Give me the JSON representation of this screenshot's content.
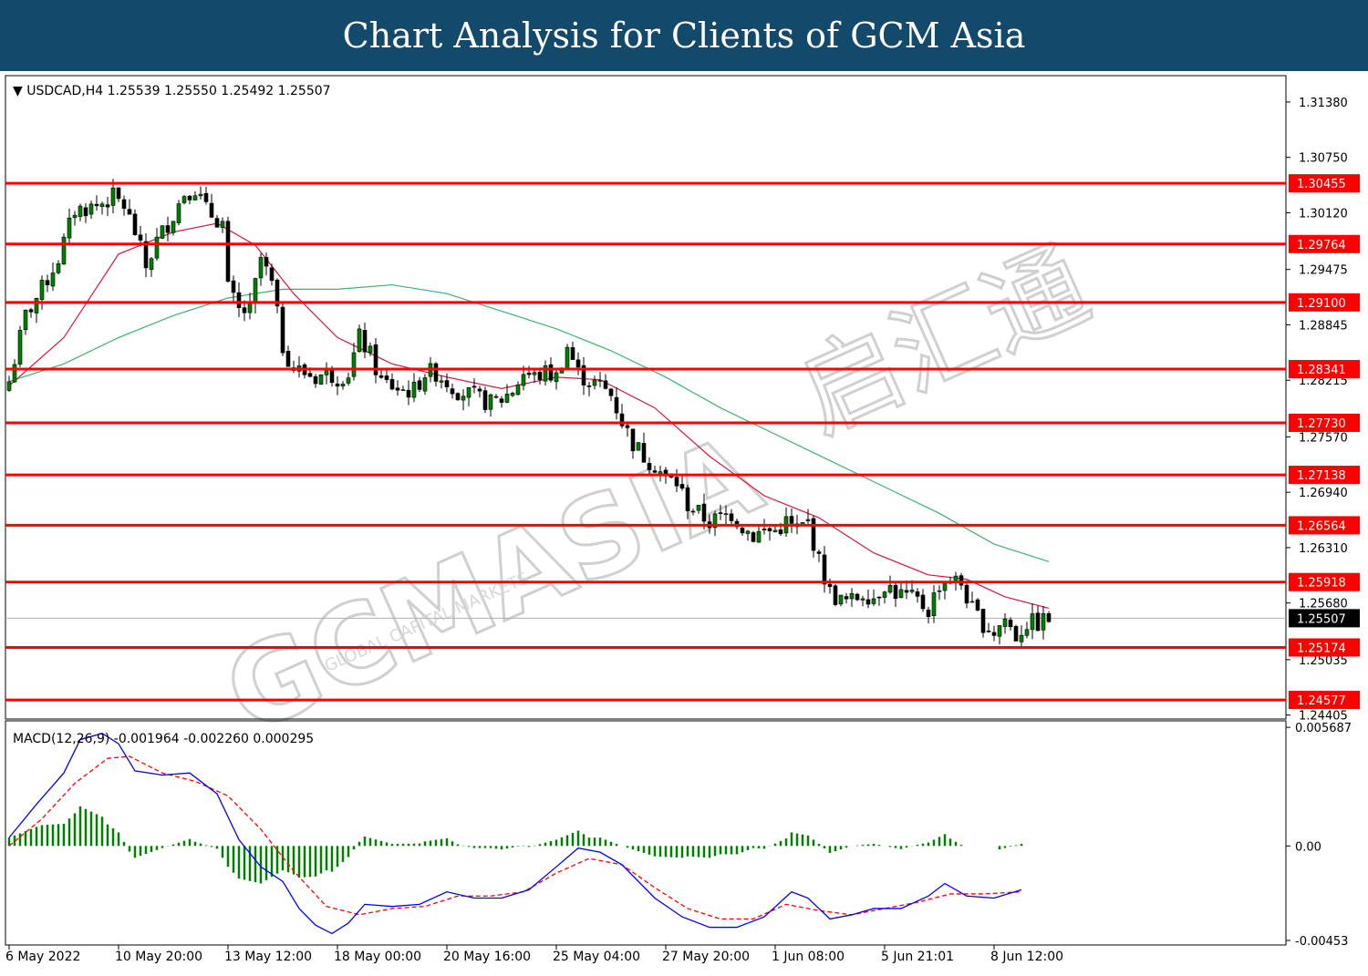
{
  "banner": {
    "title": "Chart Analysis for Clients of GCM Asia"
  },
  "watermark": {
    "text": "GCMASIA",
    "sub": "GLOBAL CAPITAL MARKETS",
    "chinese": "启汇通"
  },
  "colors": {
    "up_candle": "#008000",
    "down_candle": "#000000",
    "ma_fast": "#dc143c",
    "ma_slow": "#3cb371",
    "level": "#ff0000",
    "macd_line": "#0000ff",
    "signal_line": "#ff0000",
    "histogram": "#008000"
  },
  "chart_data": [
    {
      "type": "candlestick",
      "symbol_text": "USDCAD,H4",
      "ohlc_text": "1.25539 1.25550 1.25492 1.25507",
      "current_price": 1.25507,
      "price_range": [
        1.2436,
        1.3168
      ],
      "price_ticks": [
        "1.31380",
        "1.30750",
        "1.30120",
        "1.29475",
        "1.28845",
        "1.28215",
        "1.27570",
        "1.26940",
        "1.26310",
        "1.25680",
        "1.25035",
        "1.24405"
      ],
      "levels": [
        "1.30455",
        "1.29764",
        "1.29100",
        "1.28341",
        "1.27730",
        "1.27138",
        "1.26564",
        "1.25918",
        "1.25174",
        "1.24577"
      ],
      "x_labels": [
        "6 May 2022",
        "10 May 20:00",
        "13 May 12:00",
        "18 May 00:00",
        "20 May 16:00",
        "25 May 04:00",
        "27 May 20:00",
        "1 Jun 08:00",
        "5 Jun 21:01",
        "8 Jun 12:00"
      ],
      "x_label_bars": [
        0,
        20,
        40,
        60,
        80,
        100,
        120,
        140,
        160,
        180
      ],
      "close_path": [
        [
          0,
          1.282
        ],
        [
          3,
          1.2895
        ],
        [
          6,
          1.2925
        ],
        [
          9,
          1.296
        ],
        [
          12,
          1.3015
        ],
        [
          16,
          1.302
        ],
        [
          19,
          1.303
        ],
        [
          21,
          1.302
        ],
        [
          23,
          1.299
        ],
        [
          25,
          1.295
        ],
        [
          27,
          1.298
        ],
        [
          30,
          1.301
        ],
        [
          32,
          1.3035
        ],
        [
          34,
          1.304
        ],
        [
          36,
          1.3015
        ],
        [
          39,
          1.3
        ],
        [
          40,
          1.2925
        ],
        [
          42,
          1.29
        ],
        [
          44,
          1.29
        ],
        [
          46,
          1.296
        ],
        [
          48,
          1.293
        ],
        [
          50,
          1.286
        ],
        [
          52,
          1.2835
        ],
        [
          54,
          1.283
        ],
        [
          56,
          1.2825
        ],
        [
          58,
          1.283
        ],
        [
          60,
          1.2825
        ],
        [
          62,
          1.283
        ],
        [
          64,
          1.287
        ],
        [
          66,
          1.285
        ],
        [
          68,
          1.282
        ],
        [
          70,
          1.2815
        ],
        [
          72,
          1.281
        ],
        [
          74,
          1.281
        ],
        [
          76,
          1.283
        ],
        [
          78,
          1.283
        ],
        [
          80,
          1.282
        ],
        [
          82,
          1.281
        ],
        [
          84,
          1.2805
        ],
        [
          86,
          1.28
        ],
        [
          88,
          1.2795
        ],
        [
          90,
          1.28
        ],
        [
          92,
          1.281
        ],
        [
          94,
          1.283
        ],
        [
          96,
          1.2825
        ],
        [
          98,
          1.283
        ],
        [
          100,
          1.2825
        ],
        [
          102,
          1.286
        ],
        [
          104,
          1.283
        ],
        [
          106,
          1.282
        ],
        [
          108,
          1.2815
        ],
        [
          110,
          1.2805
        ],
        [
          112,
          1.2775
        ],
        [
          114,
          1.275
        ],
        [
          116,
          1.2735
        ],
        [
          118,
          1.2725
        ],
        [
          120,
          1.271
        ],
        [
          122,
          1.2705
        ],
        [
          124,
          1.268
        ],
        [
          126,
          1.267
        ],
        [
          128,
          1.266
        ],
        [
          130,
          1.2665
        ],
        [
          132,
          1.267
        ],
        [
          134,
          1.2655
        ],
        [
          136,
          1.2645
        ],
        [
          138,
          1.265
        ],
        [
          140,
          1.265
        ],
        [
          142,
          1.266
        ],
        [
          144,
          1.265
        ],
        [
          146,
          1.266
        ],
        [
          148,
          1.2615
        ],
        [
          150,
          1.258
        ],
        [
          152,
          1.257
        ],
        [
          154,
          1.257
        ],
        [
          156,
          1.258
        ],
        [
          158,
          1.2575
        ],
        [
          160,
          1.259
        ],
        [
          162,
          1.258
        ],
        [
          164,
          1.2575
        ],
        [
          166,
          1.257
        ],
        [
          168,
          1.256
        ],
        [
          170,
          1.259
        ],
        [
          172,
          1.2595
        ],
        [
          174,
          1.259
        ],
        [
          176,
          1.256
        ],
        [
          178,
          1.2545
        ],
        [
          180,
          1.2535
        ],
        [
          182,
          1.255
        ],
        [
          184,
          1.253
        ],
        [
          186,
          1.2545
        ],
        [
          188,
          1.2545
        ],
        [
          190,
          1.255
        ]
      ],
      "ma_fast": [
        [
          0,
          1.2815
        ],
        [
          10,
          1.287
        ],
        [
          20,
          1.2965
        ],
        [
          30,
          1.299
        ],
        [
          38,
          1.3
        ],
        [
          45,
          1.2975
        ],
        [
          52,
          1.292
        ],
        [
          60,
          1.287
        ],
        [
          70,
          1.284
        ],
        [
          80,
          1.2825
        ],
        [
          90,
          1.2812
        ],
        [
          100,
          1.2825
        ],
        [
          108,
          1.2822
        ],
        [
          118,
          1.279
        ],
        [
          128,
          1.2735
        ],
        [
          138,
          1.269
        ],
        [
          148,
          1.2665
        ],
        [
          158,
          1.2625
        ],
        [
          168,
          1.26
        ],
        [
          175,
          1.2595
        ],
        [
          182,
          1.2575
        ],
        [
          190,
          1.2562
        ]
      ],
      "ma_slow": [
        [
          0,
          1.282
        ],
        [
          10,
          1.284
        ],
        [
          20,
          1.287
        ],
        [
          30,
          1.2895
        ],
        [
          40,
          1.2915
        ],
        [
          50,
          1.2925
        ],
        [
          60,
          1.2925
        ],
        [
          70,
          1.293
        ],
        [
          80,
          1.292
        ],
        [
          90,
          1.29
        ],
        [
          100,
          1.288
        ],
        [
          110,
          1.2855
        ],
        [
          120,
          1.2825
        ],
        [
          130,
          1.279
        ],
        [
          140,
          1.276
        ],
        [
          150,
          1.273
        ],
        [
          160,
          1.27
        ],
        [
          170,
          1.267
        ],
        [
          180,
          1.2635
        ],
        [
          190,
          1.2615
        ]
      ]
    },
    {
      "type": "macd",
      "label": "MACD(12,26,9) -0.001964 -0.002260 0.000295",
      "value_range": [
        -0.00475,
        0.006
      ],
      "ticks": [
        "0.005687",
        "0.00",
        "-0.00453"
      ],
      "macd": [
        [
          0,
          0.0004
        ],
        [
          5,
          0.002
        ],
        [
          10,
          0.0035
        ],
        [
          13,
          0.0051
        ],
        [
          17,
          0.0054
        ],
        [
          20,
          0.0049
        ],
        [
          23,
          0.0036
        ],
        [
          28,
          0.0034
        ],
        [
          33,
          0.0035
        ],
        [
          38,
          0.0025
        ],
        [
          42,
          0.0003
        ],
        [
          46,
          -0.001
        ],
        [
          50,
          -0.0017
        ],
        [
          53,
          -0.003
        ],
        [
          56,
          -0.0038
        ],
        [
          59,
          -0.0042
        ],
        [
          62,
          -0.0037
        ],
        [
          65,
          -0.0028
        ],
        [
          70,
          -0.0029
        ],
        [
          75,
          -0.0028
        ],
        [
          80,
          -0.0022
        ],
        [
          85,
          -0.0025
        ],
        [
          90,
          -0.0025
        ],
        [
          95,
          -0.0021
        ],
        [
          100,
          -0.001
        ],
        [
          104,
          -0.0001
        ],
        [
          108,
          -0.0003
        ],
        [
          112,
          -0.0009
        ],
        [
          118,
          -0.0025
        ],
        [
          123,
          -0.0034
        ],
        [
          128,
          -0.0039
        ],
        [
          133,
          -0.0039
        ],
        [
          138,
          -0.0034
        ],
        [
          143,
          -0.0022
        ],
        [
          146,
          -0.0025
        ],
        [
          150,
          -0.0035
        ],
        [
          154,
          -0.0033
        ],
        [
          158,
          -0.003
        ],
        [
          163,
          -0.003
        ],
        [
          168,
          -0.0024
        ],
        [
          171,
          -0.0018
        ],
        [
          175,
          -0.0024
        ],
        [
          180,
          -0.0025
        ],
        [
          185,
          -0.0021
        ]
      ],
      "signal": [
        [
          0,
          0.0
        ],
        [
          6,
          0.0013
        ],
        [
          12,
          0.003
        ],
        [
          18,
          0.0042
        ],
        [
          22,
          0.0043
        ],
        [
          28,
          0.0035
        ],
        [
          34,
          0.0031
        ],
        [
          40,
          0.0024
        ],
        [
          46,
          0.0008
        ],
        [
          52,
          -0.0012
        ],
        [
          58,
          -0.0029
        ],
        [
          64,
          -0.0033
        ],
        [
          70,
          -0.003
        ],
        [
          76,
          -0.0029
        ],
        [
          82,
          -0.0024
        ],
        [
          88,
          -0.0024
        ],
        [
          94,
          -0.0022
        ],
        [
          100,
          -0.0013
        ],
        [
          106,
          -0.0006
        ],
        [
          112,
          -0.0009
        ],
        [
          118,
          -0.002
        ],
        [
          124,
          -0.003
        ],
        [
          130,
          -0.0035
        ],
        [
          136,
          -0.0035
        ],
        [
          142,
          -0.0028
        ],
        [
          148,
          -0.0031
        ],
        [
          154,
          -0.0033
        ],
        [
          160,
          -0.003
        ],
        [
          166,
          -0.0027
        ],
        [
          172,
          -0.0023
        ],
        [
          178,
          -0.0023
        ],
        [
          185,
          -0.0022
        ]
      ]
    }
  ]
}
